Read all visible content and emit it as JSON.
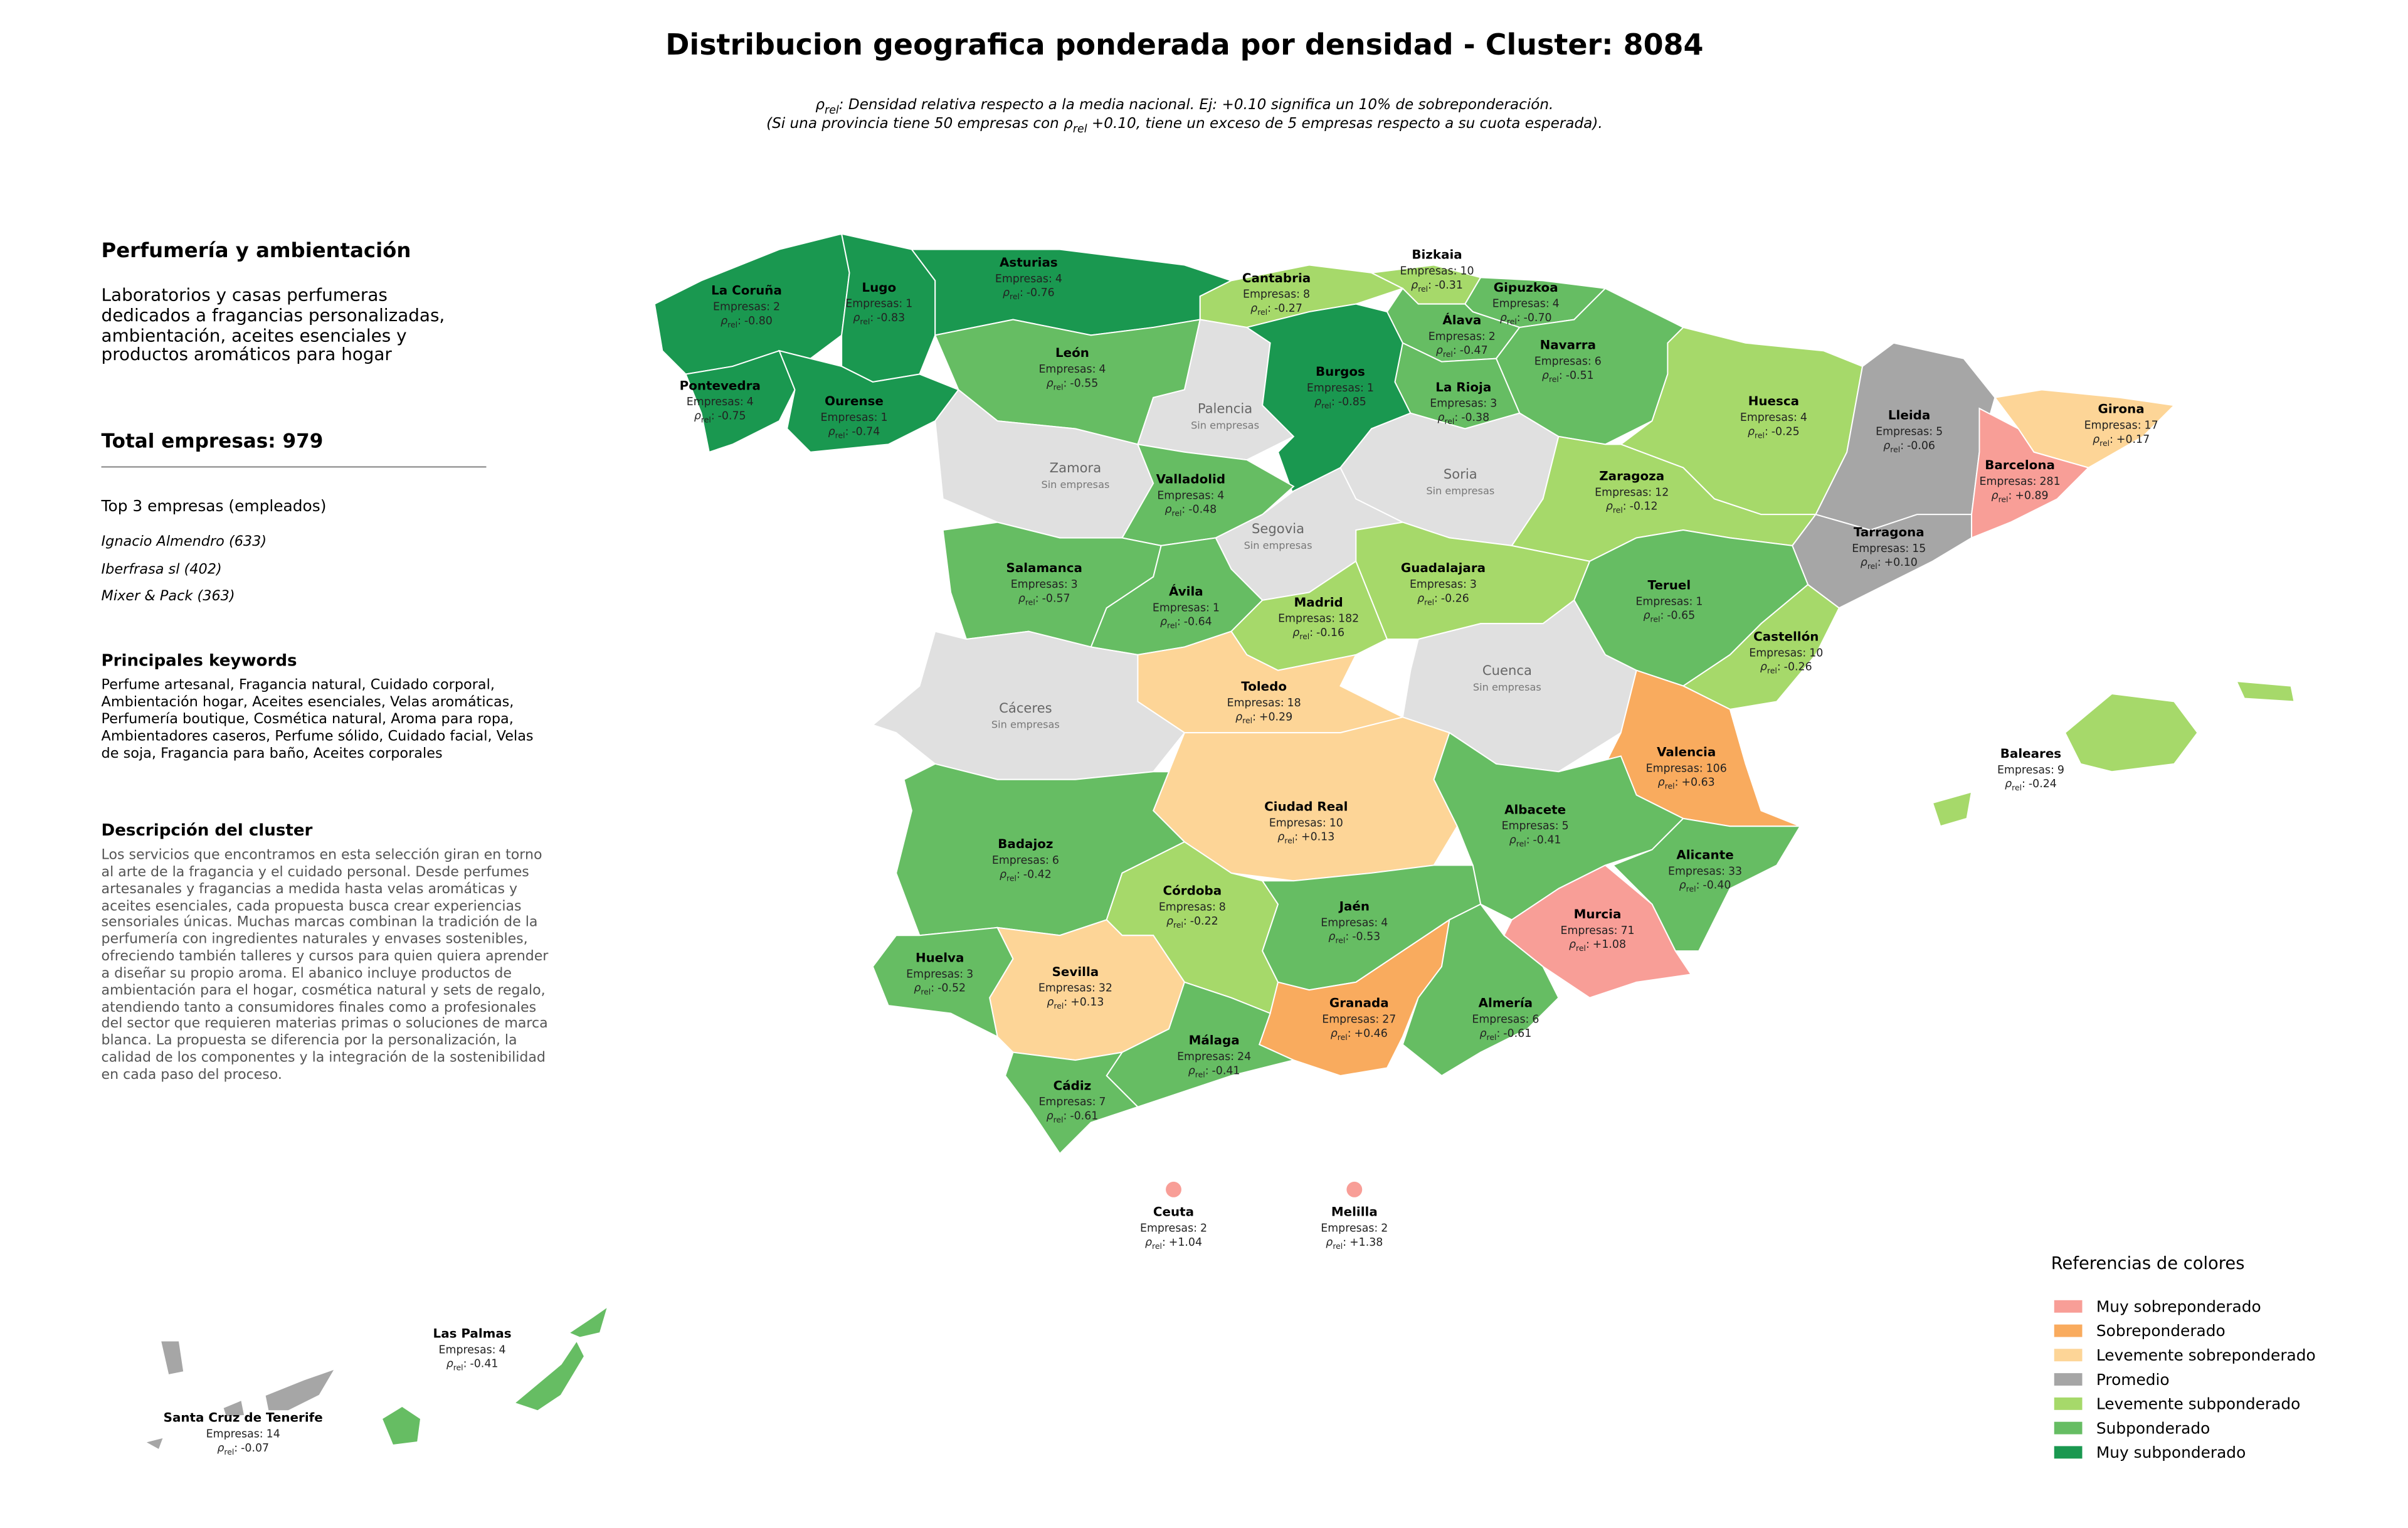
{
  "header": {
    "title": "Distribucion geografica ponderada por densidad - Cluster: 8084",
    "subtitle": {
      "line1": {
        "symbol": "ρ",
        "subscript": "rel",
        "text": ": Densidad relativa respecto a la media nacional. Ej: +0.10 significa un 10% de sobreponderación."
      },
      "line2": {
        "before": "(Si una provincia tiene 50 empresas con ",
        "symbol": "ρ",
        "subscript": "rel",
        "after": " +0.10, tiene un exceso de 5 empresas respecto a su cuota esperada)."
      }
    }
  },
  "panel": {
    "title": "Perfumería y ambientación",
    "intro": "Laboratorios y casas perfumeras dedicados a fragancias personalizadas, ambientación, aceites esenciales y productos aromáticos para hogar",
    "total_label": "Total empresas:",
    "total": 979,
    "top_title": "Top 3 empresas (empleados)",
    "top": [
      "Ignacio Almendro (633)",
      "Iberfrasa sl (402)",
      "Mixer & Pack (363)"
    ],
    "keywords_title": "Principales keywords",
    "keywords": "Perfume artesanal, Fragancia natural, Cuidado corporal, Ambientación hogar, Aceites esenciales, Velas aromáticas, Perfumería boutique, Cosmética natural, Aroma para ropa, Ambientadores caseros, Perfume sólido, Cuidado facial, Velas de soja, Fragancia para baño, Aceites corporales",
    "description_title": "Descripción del cluster",
    "description": "Los servicios que encontramos en esta selección giran en torno al arte de la fragancia y el cuidado personal. Desde perfumes artesanales y fragancias a medida hasta velas aromáticas y aceites esenciales, cada propuesta busca crear experiencias sensoriales únicas. Muchas marcas combinan la tradición de la perfumería con ingredientes naturales y envases sostenibles, ofreciendo también talleres y cursos para quien quiera aprender a diseñar su propio aroma. El abanico incluye productos de ambientación para el hogar, cosmética natural y sets de regalo, atendiendo tanto a consumidores finales como a profesionales del sector que requieren materias primas o soluciones de marca blanca. La propuesta se diferencia por la personalización, la calidad de los componentes y la integración de la sostenibilidad en cada paso del proceso."
  },
  "labels": {
    "companies": "Empresas:",
    "rho_symbol": "ρ",
    "rho_subscript": "rel",
    "rho_separator": ":"
  },
  "provinces": [
    {
      "name": "La Coruña",
      "companies": 2,
      "rho": "-0.80",
      "color": "#1a9850"
    },
    {
      "name": "Lugo",
      "companies": 1,
      "rho": "-0.83",
      "color": "#1a9850"
    },
    {
      "name": "Asturias",
      "companies": 4,
      "rho": "-0.76",
      "color": "#1a9850"
    },
    {
      "name": "Pontevedra",
      "companies": 4,
      "rho": "-0.75",
      "color": "#1a9850"
    },
    {
      "name": "Ourense",
      "companies": 1,
      "rho": "-0.74",
      "color": "#1a9850"
    },
    {
      "name": "Cantabria",
      "companies": 8,
      "rho": "-0.27",
      "color": "#a6d96a"
    },
    {
      "name": "Bizkaia",
      "companies": 10,
      "rho": "-0.31",
      "color": "#a6d96a"
    },
    {
      "name": "Gipuzkoa",
      "companies": 4,
      "rho": "-0.70",
      "color": "#66bd63"
    },
    {
      "name": "Álava",
      "companies": 2,
      "rho": "-0.47",
      "color": "#66bd63"
    },
    {
      "name": "Navarra",
      "companies": 6,
      "rho": "-0.51",
      "color": "#66bd63"
    },
    {
      "name": "La Rioja",
      "companies": 3,
      "rho": "-0.38",
      "color": "#66bd63"
    },
    {
      "name": "León",
      "companies": 4,
      "rho": "-0.55",
      "color": "#66bd63"
    },
    {
      "name": "Palencia",
      "empty_label": "Sin empresas",
      "color": "#e0e0e0"
    },
    {
      "name": "Burgos",
      "companies": 1,
      "rho": "-0.85",
      "color": "#1a9850"
    },
    {
      "name": "Zamora",
      "empty_label": "Sin empresas",
      "color": "#e0e0e0"
    },
    {
      "name": "Valladolid",
      "companies": 4,
      "rho": "-0.48",
      "color": "#66bd63"
    },
    {
      "name": "Soria",
      "empty_label": "Sin empresas",
      "color": "#e0e0e0"
    },
    {
      "name": "Segovia",
      "empty_label": "Sin empresas",
      "color": "#e0e0e0"
    },
    {
      "name": "Salamanca",
      "companies": 3,
      "rho": "-0.57",
      "color": "#66bd63"
    },
    {
      "name": "Ávila",
      "companies": 1,
      "rho": "-0.64",
      "color": "#66bd63"
    },
    {
      "name": "Madrid",
      "companies": 182,
      "rho": "-0.16",
      "color": "#a6d96a"
    },
    {
      "name": "Guadalajara",
      "companies": 3,
      "rho": "-0.26",
      "color": "#a6d96a"
    },
    {
      "name": "Huesca",
      "companies": 4,
      "rho": "-0.25",
      "color": "#a6d96a"
    },
    {
      "name": "Zaragoza",
      "companies": 12,
      "rho": "-0.12",
      "color": "#a6d96a"
    },
    {
      "name": "Lleida",
      "companies": 5,
      "rho": "-0.06",
      "color": "#a6a6a6"
    },
    {
      "name": "Girona",
      "companies": 17,
      "rho": "+0.17",
      "color": "#fdd597"
    },
    {
      "name": "Barcelona",
      "companies": 281,
      "rho": "+0.89",
      "color": "#f89e97"
    },
    {
      "name": "Tarragona",
      "companies": 15,
      "rho": "+0.10",
      "color": "#a6a6a6"
    },
    {
      "name": "Teruel",
      "companies": 1,
      "rho": "-0.65",
      "color": "#66bd63"
    },
    {
      "name": "Castellón",
      "companies": 10,
      "rho": "-0.26",
      "color": "#a6d96a"
    },
    {
      "name": "Cuenca",
      "empty_label": "Sin empresas",
      "color": "#e0e0e0"
    },
    {
      "name": "Toledo",
      "companies": 18,
      "rho": "+0.29",
      "color": "#fdd597"
    },
    {
      "name": "Cáceres",
      "empty_label": "Sin empresas",
      "color": "#e0e0e0"
    },
    {
      "name": "Valencia",
      "companies": 106,
      "rho": "+0.63",
      "color": "#f9ab5e"
    },
    {
      "name": "Ciudad Real",
      "companies": 10,
      "rho": "+0.13",
      "color": "#fdd597"
    },
    {
      "name": "Albacete",
      "companies": 5,
      "rho": "-0.41",
      "color": "#66bd63"
    },
    {
      "name": "Alicante",
      "companies": 33,
      "rho": "-0.40",
      "color": "#66bd63"
    },
    {
      "name": "Murcia",
      "companies": 71,
      "rho": "+1.08",
      "color": "#f89e97"
    },
    {
      "name": "Badajoz",
      "companies": 6,
      "rho": "-0.42",
      "color": "#66bd63"
    },
    {
      "name": "Córdoba",
      "companies": 8,
      "rho": "-0.22",
      "color": "#a6d96a"
    },
    {
      "name": "Jaén",
      "companies": 4,
      "rho": "-0.53",
      "color": "#66bd63"
    },
    {
      "name": "Huelva",
      "companies": 3,
      "rho": "-0.52",
      "color": "#66bd63"
    },
    {
      "name": "Sevilla",
      "companies": 32,
      "rho": "+0.13",
      "color": "#fdd597"
    },
    {
      "name": "Granada",
      "companies": 27,
      "rho": "+0.46",
      "color": "#f9ab5e"
    },
    {
      "name": "Almería",
      "companies": 6,
      "rho": "-0.61",
      "color": "#66bd63"
    },
    {
      "name": "Málaga",
      "companies": 24,
      "rho": "-0.41",
      "color": "#66bd63"
    },
    {
      "name": "Cádiz",
      "companies": 7,
      "rho": "-0.61",
      "color": "#66bd63"
    },
    {
      "name": "Ceuta",
      "companies": 2,
      "rho": "+1.04",
      "color": "#f89e97"
    },
    {
      "name": "Melilla",
      "companies": 2,
      "rho": "+1.38",
      "color": "#f89e97"
    },
    {
      "name": "Baleares",
      "companies": 9,
      "rho": "-0.24",
      "color": "#a6d96a"
    },
    {
      "name": "Las Palmas",
      "companies": 4,
      "rho": "-0.41",
      "color": "#66bd63"
    },
    {
      "name": "Santa Cruz de Tenerife",
      "companies": 14,
      "rho": "-0.07",
      "color": "#a6a6a6"
    }
  ],
  "legend": {
    "title": "Referencias de colores",
    "items": [
      {
        "name": "Muy sobreponderado",
        "color": "#f89e97"
      },
      {
        "name": "Sobreponderado",
        "color": "#f9ab5e"
      },
      {
        "name": "Levemente sobreponderado",
        "color": "#fdd597"
      },
      {
        "name": "Promedio",
        "color": "#a6a6a6"
      },
      {
        "name": "Levemente subponderado",
        "color": "#a6d96a"
      },
      {
        "name": "Subponderado",
        "color": "#66bd63"
      },
      {
        "name": "Muy subponderado",
        "color": "#1a9850"
      }
    ]
  }
}
